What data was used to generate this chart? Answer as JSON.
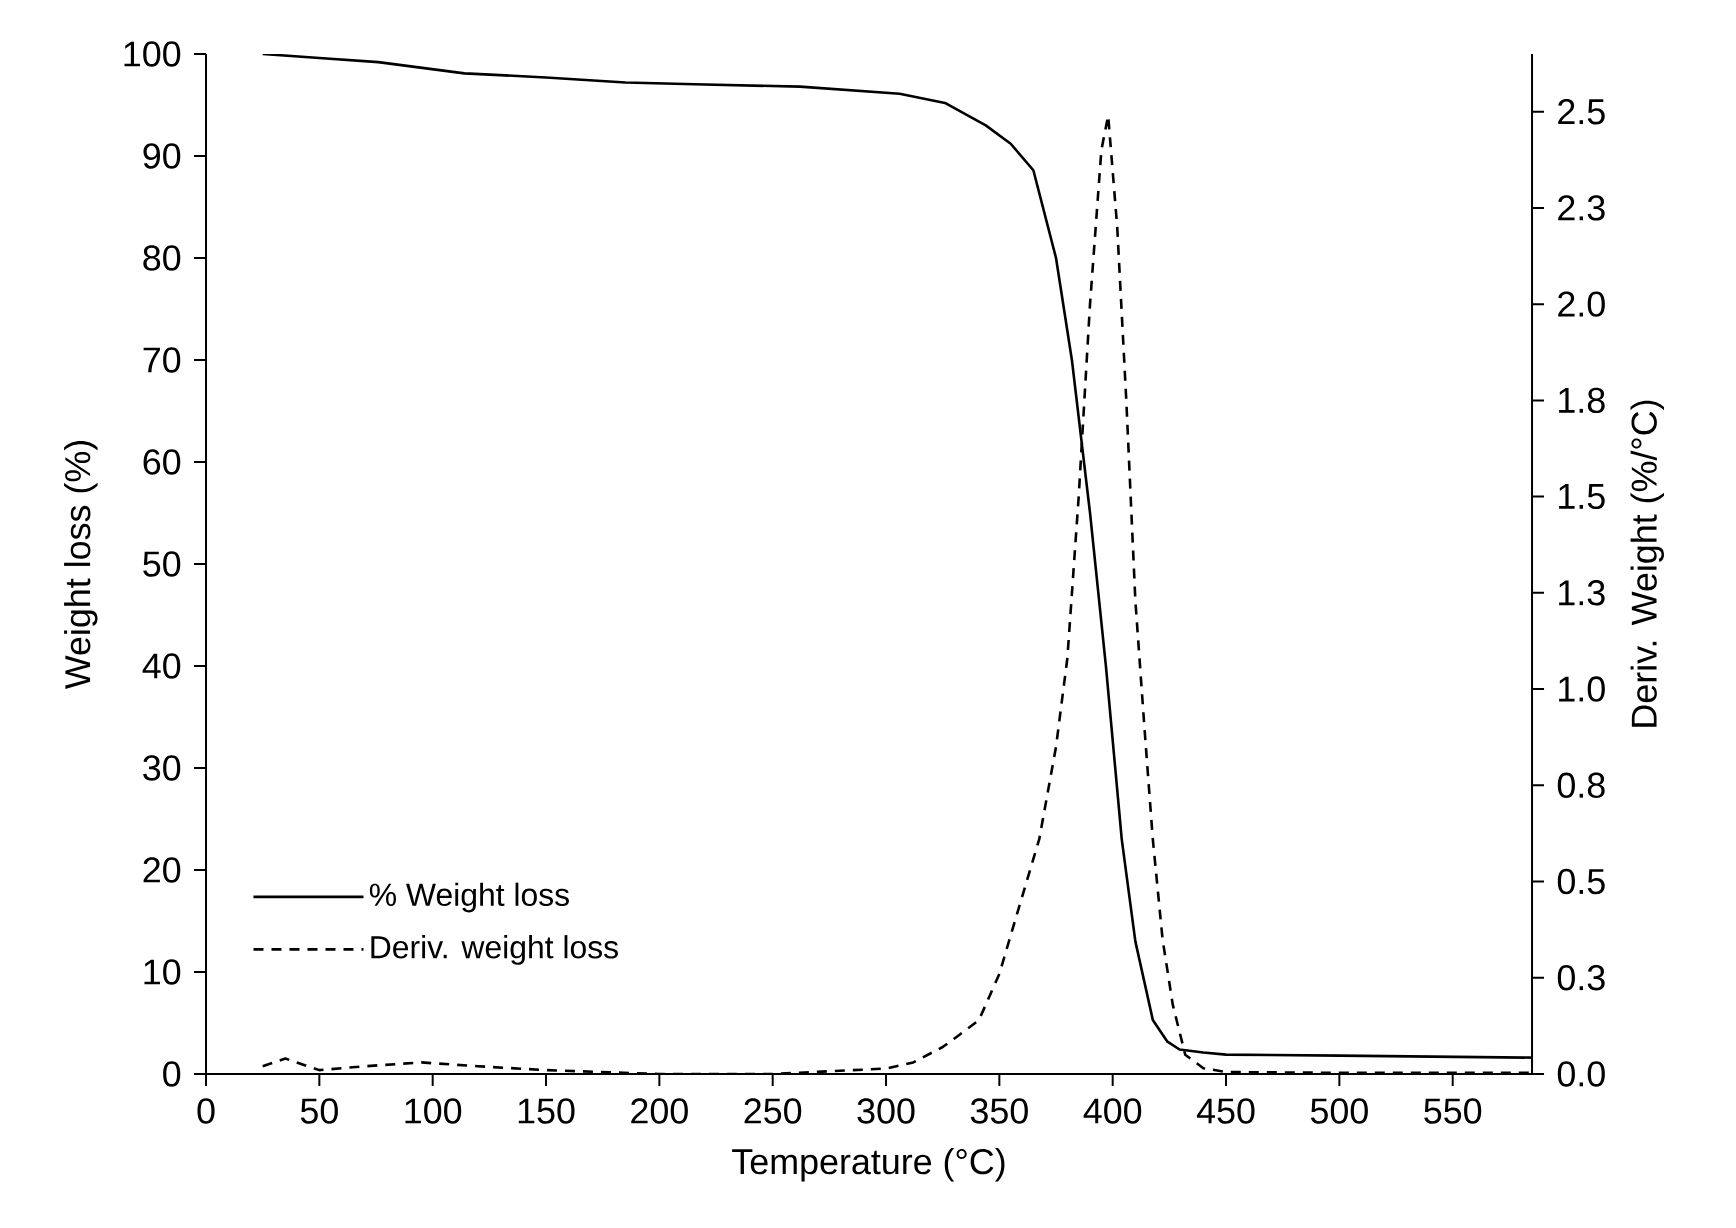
{
  "chart_data": {
    "type": "line",
    "xlabel": "Temperature (°C)",
    "ylabel": "Weight loss (%)",
    "y2label": "Deriv. Weight (%/°C)",
    "xlim": [
      0,
      585
    ],
    "xticks": [
      0,
      50,
      100,
      150,
      200,
      250,
      300,
      350,
      400,
      450,
      500,
      550
    ],
    "ylim": [
      0,
      100
    ],
    "yticks": [
      0,
      10,
      20,
      30,
      40,
      50,
      60,
      70,
      80,
      90,
      100
    ],
    "y2lim": [
      0,
      2.65
    ],
    "y2ticks": [
      {
        "value": 0,
        "label": "0.0"
      },
      {
        "value": 0.25,
        "label": "0.3"
      },
      {
        "value": 0.5,
        "label": "0.5"
      },
      {
        "value": 0.75,
        "label": "0.8"
      },
      {
        "value": 1.0,
        "label": "1.0"
      },
      {
        "value": 1.25,
        "label": "1.3"
      },
      {
        "value": 1.5,
        "label": "1.5"
      },
      {
        "value": 1.75,
        "label": "1.8"
      },
      {
        "value": 2.0,
        "label": "2.0"
      },
      {
        "value": 2.25,
        "label": "2.3"
      },
      {
        "value": 2.5,
        "label": "2.5"
      }
    ],
    "legend": "bottom left",
    "grid": false,
    "marker": "none",
    "series": [
      {
        "name": "% Weight loss",
        "color": "#000000",
        "line_style": "solid",
        "x": [
          25,
          50,
          76,
          114,
          150,
          185,
          220,
          262,
          306,
          326,
          344,
          355,
          365,
          375,
          382,
          390,
          397,
          404,
          410,
          417.7,
          424,
          429.5,
          440,
          450,
          500,
          585
        ],
        "values": [
          100,
          99.6,
          99.2,
          98.1,
          97.7,
          97.2,
          97.0,
          96.8,
          96.1,
          95.2,
          93.0,
          91.2,
          88.6,
          80,
          70,
          55,
          40,
          23,
          13,
          5.3,
          3.2,
          2.4,
          2.1,
          1.9,
          1.8,
          1.6
        ]
      },
      {
        "name": "Deriv. weight loss",
        "color": "#000000",
        "line_style": "dashed",
        "axis": "y2",
        "x": [
          25,
          35,
          50,
          70,
          95,
          120,
          150,
          200,
          250,
          300,
          312,
          325,
          332,
          341,
          350,
          356,
          367.6,
          375,
          380,
          385,
          390,
          395,
          398,
          402,
          406,
          410,
          414,
          417.7,
          422,
          426.5,
          432,
          440,
          450,
          500,
          585
        ],
        "values": [
          0.02,
          0.04,
          0.01,
          0.02,
          0.03,
          0.02,
          0.01,
          0.0,
          0.0,
          0.014,
          0.03,
          0.07,
          0.1,
          0.14,
          0.26,
          0.38,
          0.61,
          0.85,
          1.08,
          1.5,
          2.0,
          2.4,
          2.49,
          2.2,
          1.75,
          1.23,
          0.9,
          0.61,
          0.35,
          0.18,
          0.05,
          0.015,
          0.005,
          0.003,
          0.003
        ]
      }
    ]
  }
}
